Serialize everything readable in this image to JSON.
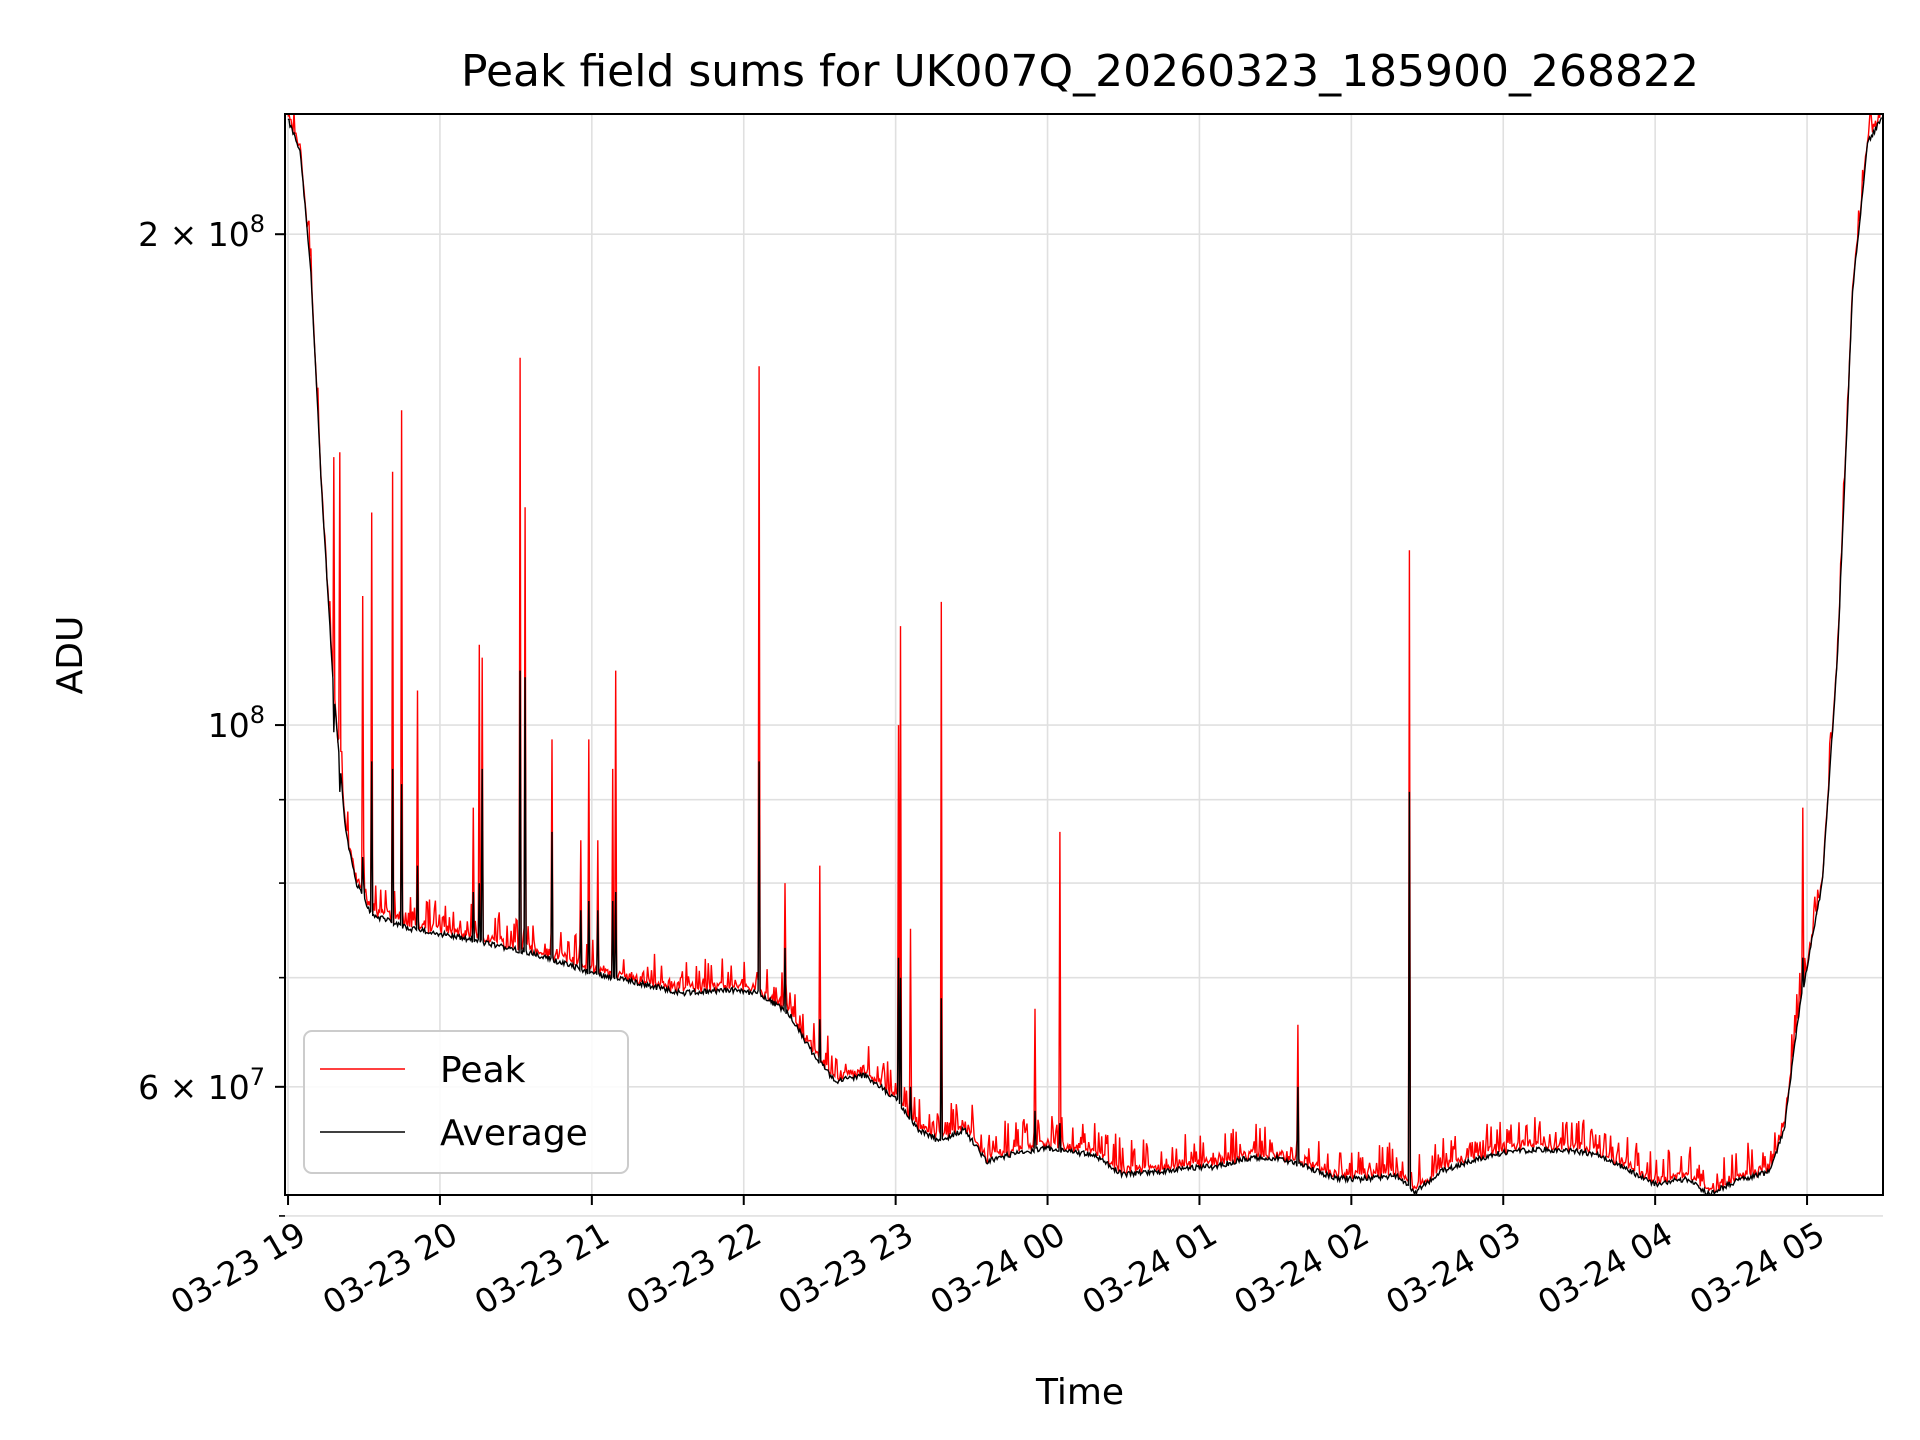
{
  "chart_data": {
    "type": "line",
    "title": "Peak field sums for UK007Q_20260323_185900_268822",
    "xlabel": "Time",
    "ylabel": "ADU",
    "yscale": "log",
    "grid": true,
    "legend_position": "lower-left",
    "xlim_hours": [
      -0.02,
      10.5
    ],
    "ylim": [
      51500000,
      237000000
    ],
    "x_ticks": [
      {
        "h": 0,
        "label": "03-23 19"
      },
      {
        "h": 1,
        "label": "03-23 20"
      },
      {
        "h": 2,
        "label": "03-23 21"
      },
      {
        "h": 3,
        "label": "03-23 22"
      },
      {
        "h": 4,
        "label": "03-23 23"
      },
      {
        "h": 5,
        "label": "03-24 00"
      },
      {
        "h": 6,
        "label": "03-24 01"
      },
      {
        "h": 7,
        "label": "03-24 02"
      },
      {
        "h": 8,
        "label": "03-24 03"
      },
      {
        "h": 9,
        "label": "03-24 04"
      },
      {
        "h": 10,
        "label": "03-24 05"
      }
    ],
    "y_major_ticks": [
      {
        "value": 60000000,
        "base": "6",
        "exp": "7"
      },
      {
        "value": 100000000,
        "base": "",
        "exp": "8"
      },
      {
        "value": 200000000,
        "base": "2",
        "exp": "8"
      }
    ],
    "y_minor_ticks": [
      50000000,
      70000000,
      80000000,
      90000000
    ],
    "series": [
      {
        "name": "Peak",
        "color": "#ff0000"
      },
      {
        "name": "Average",
        "color": "#000000"
      }
    ],
    "average_baseline": [
      [
        0,
        235000000
      ],
      [
        0.08,
        225000000
      ],
      [
        0.15,
        190000000
      ],
      [
        0.22,
        140000000
      ],
      [
        0.3,
        105000000
      ],
      [
        0.38,
        86000000
      ],
      [
        0.45,
        80000000
      ],
      [
        0.55,
        76500000
      ],
      [
        0.8,
        75000000
      ],
      [
        1.0,
        74500000
      ],
      [
        1.3,
        73500000
      ],
      [
        1.6,
        72500000
      ],
      [
        2.0,
        70500000
      ],
      [
        2.3,
        69500000
      ],
      [
        2.6,
        68500000
      ],
      [
        2.9,
        68800000
      ],
      [
        3.1,
        68500000
      ],
      [
        3.3,
        66500000
      ],
      [
        3.45,
        63000000
      ],
      [
        3.6,
        60500000
      ],
      [
        3.8,
        61000000
      ],
      [
        4.0,
        59000000
      ],
      [
        4.15,
        56500000
      ],
      [
        4.3,
        55500000
      ],
      [
        4.45,
        56500000
      ],
      [
        4.6,
        54000000
      ],
      [
        4.75,
        54500000
      ],
      [
        5.0,
        55000000
      ],
      [
        5.3,
        54500000
      ],
      [
        5.5,
        53000000
      ],
      [
        5.7,
        53200000
      ],
      [
        5.9,
        53500000
      ],
      [
        6.1,
        53600000
      ],
      [
        6.3,
        54200000
      ],
      [
        6.5,
        54300000
      ],
      [
        6.7,
        53600000
      ],
      [
        6.9,
        52700000
      ],
      [
        7.1,
        52700000
      ],
      [
        7.3,
        52900000
      ],
      [
        7.42,
        51700000
      ],
      [
        7.6,
        53300000
      ],
      [
        7.8,
        54100000
      ],
      [
        8.0,
        54700000
      ],
      [
        8.2,
        54900000
      ],
      [
        8.4,
        54900000
      ],
      [
        8.6,
        54600000
      ],
      [
        8.8,
        53500000
      ],
      [
        9.0,
        52300000
      ],
      [
        9.2,
        52700000
      ],
      [
        9.35,
        51600000
      ],
      [
        9.55,
        52600000
      ],
      [
        9.75,
        53200000
      ],
      [
        9.85,
        56500000
      ],
      [
        9.95,
        67000000
      ],
      [
        10.1,
        80000000
      ],
      [
        10.2,
        110000000
      ],
      [
        10.3,
        185000000
      ],
      [
        10.4,
        228000000
      ],
      [
        10.5,
        236000000
      ]
    ],
    "spikes": [
      {
        "h": 0.3,
        "peak": 146000000,
        "avg": 99000000
      },
      {
        "h": 0.34,
        "peak": 147000000,
        "avg": 91000000
      },
      {
        "h": 0.5,
        "peak": 84000000,
        "avg": 80000000
      },
      {
        "h": 0.49,
        "peak": 120000000,
        "avg": 83000000
      },
      {
        "h": 0.55,
        "peak": 135000000,
        "avg": 95000000
      },
      {
        "h": 0.69,
        "peak": 143000000,
        "avg": 94000000
      },
      {
        "h": 0.75,
        "peak": 156000000,
        "avg": 92000000
      },
      {
        "h": 0.85,
        "peak": 105000000,
        "avg": 82000000
      },
      {
        "h": 1.22,
        "peak": 89000000,
        "avg": 79000000
      },
      {
        "h": 1.26,
        "peak": 112000000,
        "avg": 80000000
      },
      {
        "h": 1.28,
        "peak": 110000000,
        "avg": 94000000
      },
      {
        "h": 1.53,
        "peak": 168000000,
        "avg": 108000000
      },
      {
        "h": 1.56,
        "peak": 136000000,
        "avg": 107000000
      },
      {
        "h": 1.74,
        "peak": 98000000,
        "avg": 86000000
      },
      {
        "h": 1.93,
        "peak": 85000000,
        "avg": 77000000
      },
      {
        "h": 1.98,
        "peak": 98000000,
        "avg": 78000000
      },
      {
        "h": 2.04,
        "peak": 85000000,
        "avg": 77000000
      },
      {
        "h": 2.14,
        "peak": 94000000,
        "avg": 78000000
      },
      {
        "h": 2.16,
        "peak": 108000000,
        "avg": 79000000
      },
      {
        "h": 3.1,
        "peak": 166000000,
        "avg": 95000000
      },
      {
        "h": 3.27,
        "peak": 80000000,
        "avg": 73000000
      },
      {
        "h": 3.5,
        "peak": 82000000,
        "avg": 66000000
      },
      {
        "h": 4.02,
        "peak": 100000000,
        "avg": 72000000
      },
      {
        "h": 4.03,
        "peak": 115000000,
        "avg": 70000000
      },
      {
        "h": 4.1,
        "peak": 75000000,
        "avg": 60000000
      },
      {
        "h": 4.3,
        "peak": 119000000,
        "avg": 68000000
      },
      {
        "h": 4.92,
        "peak": 67000000,
        "avg": 58000000
      },
      {
        "h": 5.08,
        "peak": 86000000,
        "avg": 57000000
      },
      {
        "h": 6.65,
        "peak": 65500000,
        "avg": 60000000
      },
      {
        "h": 7.38,
        "peak": 128000000,
        "avg": 91000000
      },
      {
        "h": 9.97,
        "peak": 89000000,
        "avg": 72000000
      }
    ]
  }
}
